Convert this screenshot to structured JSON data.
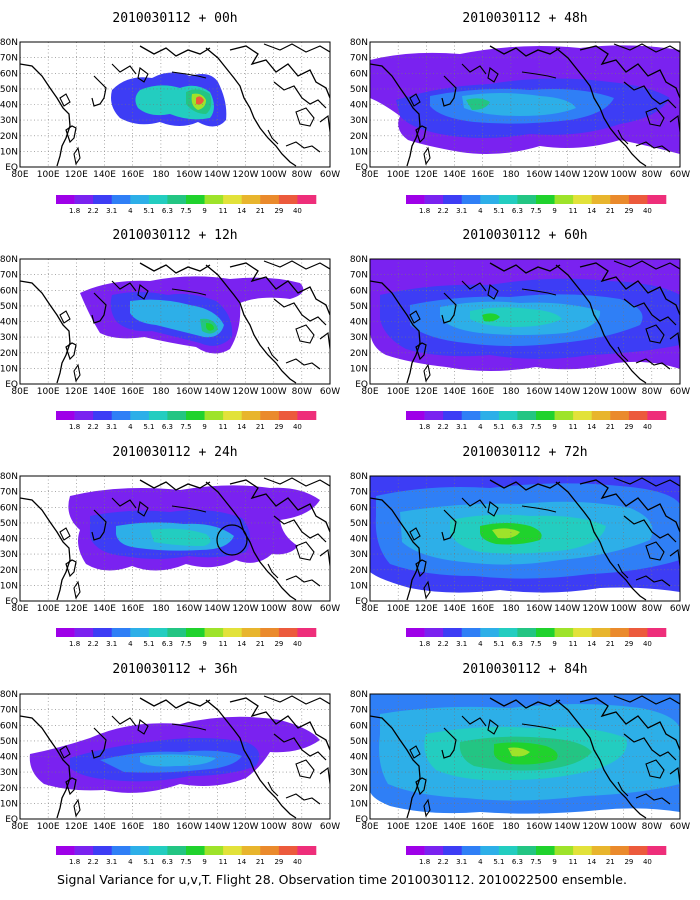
{
  "caption": "Signal Variance for u,v,T. Flight 28. Observation time 2010030112. 2010022500 ensemble.",
  "lat_labels": [
    "80N",
    "70N",
    "60N",
    "50N",
    "40N",
    "30N",
    "20N",
    "10N",
    "EQ"
  ],
  "lon_labels": [
    "80E",
    "100E",
    "120E",
    "140E",
    "160E",
    "180",
    "160W",
    "140W",
    "120W",
    "100W",
    "80W",
    "60W"
  ],
  "colorbar": {
    "labels": [
      "1.8",
      "2.2",
      "3.1",
      "4",
      "5.1",
      "6.3",
      "7.5",
      "9",
      "11",
      "14",
      "21",
      "29",
      "40"
    ],
    "colors": [
      "#9e00e8",
      "#7a22f0",
      "#3d3df5",
      "#2f7ff6",
      "#2dafe8",
      "#23cdc0",
      "#23c583",
      "#20d22d",
      "#9ee32a",
      "#e2e23a",
      "#e8b52d",
      "#ea8a2c",
      "#ec5a3c",
      "#ee2e7a"
    ]
  },
  "panels": [
    {
      "id": "p00",
      "title": "2010030112 + 00h"
    },
    {
      "id": "p48",
      "title": "2010030112 + 48h"
    },
    {
      "id": "p12",
      "title": "2010030112 + 12h"
    },
    {
      "id": "p60",
      "title": "2010030112 + 60h"
    },
    {
      "id": "p24",
      "title": "2010030112 + 24h"
    },
    {
      "id": "p72",
      "title": "2010030112 + 72h"
    },
    {
      "id": "p36",
      "title": "2010030112 + 36h"
    },
    {
      "id": "p84",
      "title": "2010030112 + 84h"
    }
  ]
}
